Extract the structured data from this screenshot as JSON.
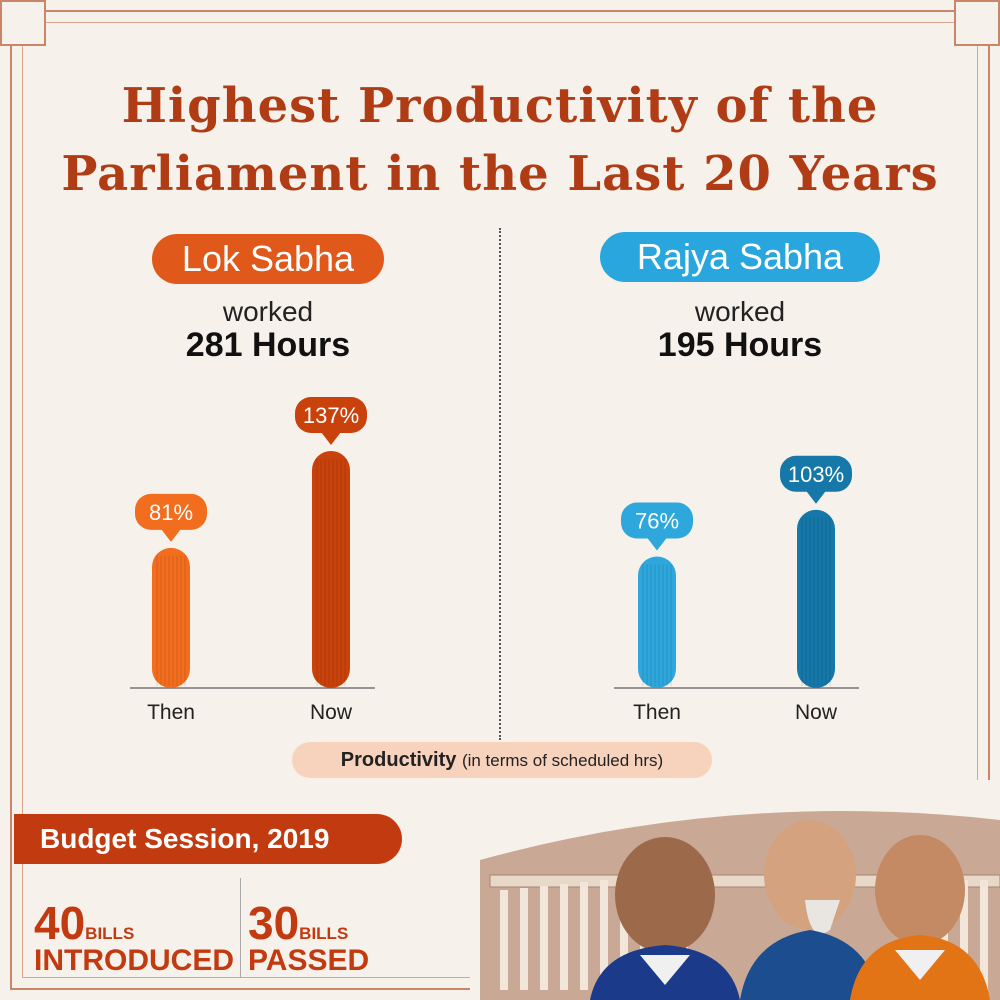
{
  "title": {
    "line1": "Highest Productivity of the",
    "line2": "Parliament in the Last 20 Years"
  },
  "houses": [
    {
      "name": "Lok Sabha",
      "worked_label": "worked",
      "hours": "281 Hours",
      "color_light": "#f26d1d",
      "color_dark": "#c9420c",
      "accent": "#e0581a"
    },
    {
      "name": "Rajya Sabha",
      "worked_label": "worked",
      "hours": "195 Hours",
      "color_light": "#2ea7dc",
      "color_dark": "#1578a8",
      "accent": "#29a6dd"
    }
  ],
  "chart_data": [
    {
      "type": "bar",
      "categories": [
        "Then",
        "Now"
      ],
      "values": [
        81,
        137
      ],
      "value_labels": [
        "81%",
        "137%"
      ]
    },
    {
      "type": "bar",
      "categories": [
        "Then",
        "Now"
      ],
      "values": [
        76,
        103
      ],
      "value_labels": [
        "76%",
        "103%"
      ]
    }
  ],
  "productivity_note": {
    "bold": "Productivity",
    "rest": "(in terms of scheduled hrs)"
  },
  "budget_session": "Budget Session, 2019",
  "stats": [
    {
      "number": "40",
      "unit": "BILLS",
      "word": "INTRODUCED"
    },
    {
      "number": "30",
      "unit": "BILLS",
      "word": "PASSED"
    }
  ]
}
